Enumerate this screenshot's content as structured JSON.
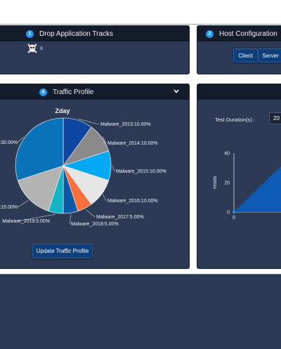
{
  "panels": {
    "drop": {
      "number": "1",
      "title": "Drop Application Tracks",
      "track_x": "x"
    },
    "host": {
      "number": "2",
      "title": "Host Configuration",
      "client_label": "Client",
      "server_label": "Server"
    },
    "traffic": {
      "number": "4",
      "title": "Traffic Profile",
      "update_label": "Update Traffic Profile"
    },
    "test": {
      "duration_label": "Test Duration(s) :",
      "duration_value": "20"
    }
  },
  "chart_data": [
    {
      "type": "pie",
      "title": "Zday",
      "slices": [
        {
          "label": "Malware_2013:10.00%",
          "value": 10,
          "color": "#0d47a1"
        },
        {
          "label": "Malware_2014:10.00%",
          "value": 10,
          "color": "#8a8a8a"
        },
        {
          "label": "Malware_2015:10.00%",
          "value": 10,
          "color": "#03a9f4"
        },
        {
          "label": "Malware_2016:10.00%",
          "value": 10,
          "color": "#e6e6e6"
        },
        {
          "label": "Malware_2017:5.00%",
          "value": 5,
          "color": "#ff6f3c"
        },
        {
          "label": "Malware_2018:5.00%",
          "value": 5,
          "color": "#0a5aa8"
        },
        {
          "label": "Malware_2019:5.00%",
          "value": 5,
          "color": "#12b3c4"
        },
        {
          "label": ":15.00%",
          "value": 15,
          "color": "#b3b3b3"
        },
        {
          "label": ":30.00%",
          "value": 30,
          "color": "#0a72b8"
        }
      ]
    },
    {
      "type": "area",
      "ylabel": "Hosts",
      "yticks": [
        "40",
        "20",
        "0"
      ],
      "xticks": [
        "0"
      ],
      "ylim": [
        0,
        40
      ]
    }
  ]
}
